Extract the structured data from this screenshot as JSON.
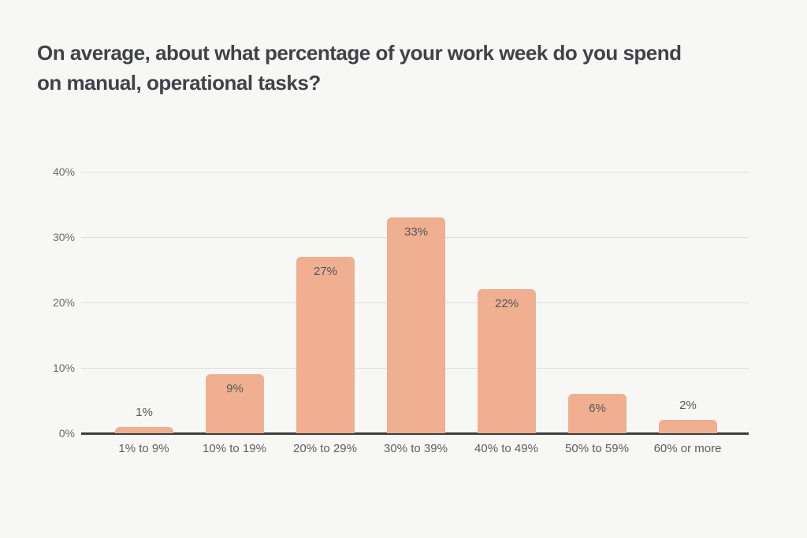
{
  "title": {
    "line1": "On average, about what percentage of your work week do you spend",
    "line2": "on manual, operational tasks?"
  },
  "chart_data": {
    "type": "bar",
    "title": "On average, about what percentage of your work week do you spend on manual, operational tasks?",
    "categories": [
      "1% to 9%",
      "10% to 19%",
      "20% to 29%",
      "30% to 39%",
      "40% to 49%",
      "50% to 59%",
      "60% or more"
    ],
    "values": [
      1,
      9,
      27,
      33,
      22,
      6,
      2
    ],
    "value_labels": [
      "1%",
      "9%",
      "27%",
      "33%",
      "22%",
      "6%",
      "2%"
    ],
    "ytick_values": [
      0,
      10,
      20,
      30,
      40
    ],
    "ytick_labels": [
      "0%",
      "10%",
      "20%",
      "30%",
      "40%"
    ],
    "ylim": [
      0,
      40
    ],
    "xlabel": "",
    "ylabel": "",
    "grid": true,
    "legend": false,
    "colors": {
      "background": "#f7f7f5",
      "bar": "#efaf90",
      "title_text": "#414247",
      "axis_line": "#3d3d3e",
      "gridline": "#dddddb",
      "ytick_text": "#6a6b6e",
      "xtick_text": "#5d5e62",
      "value_label_text": "#55565b"
    }
  }
}
